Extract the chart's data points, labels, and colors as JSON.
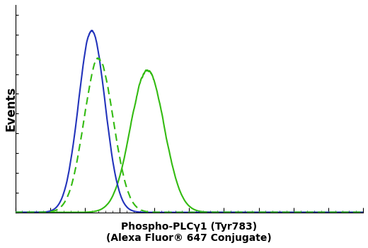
{
  "title_line1": "Phospho-PLCγ1 (Tyr783)",
  "title_line2": "(Alexa Fluor® 647 Conjugate)",
  "ylabel": "Events",
  "background_color": "#ffffff",
  "plot_bg_color": "#ffffff",
  "blue_solid": {
    "color": "#2233bb",
    "mean": 0.22,
    "std": 0.038,
    "peak": 0.92,
    "style": "solid"
  },
  "green_dashed": {
    "color": "#33bb11",
    "mean": 0.24,
    "std": 0.042,
    "peak": 0.78,
    "style": "dashed"
  },
  "green_solid": {
    "color": "#33bb11",
    "mean": 0.38,
    "std": 0.048,
    "peak": 0.72,
    "style": "solid"
  },
  "xmin": 0.0,
  "xmax": 1.0,
  "ymin": 0.0,
  "ymax": 1.05,
  "noise_seed": 42
}
